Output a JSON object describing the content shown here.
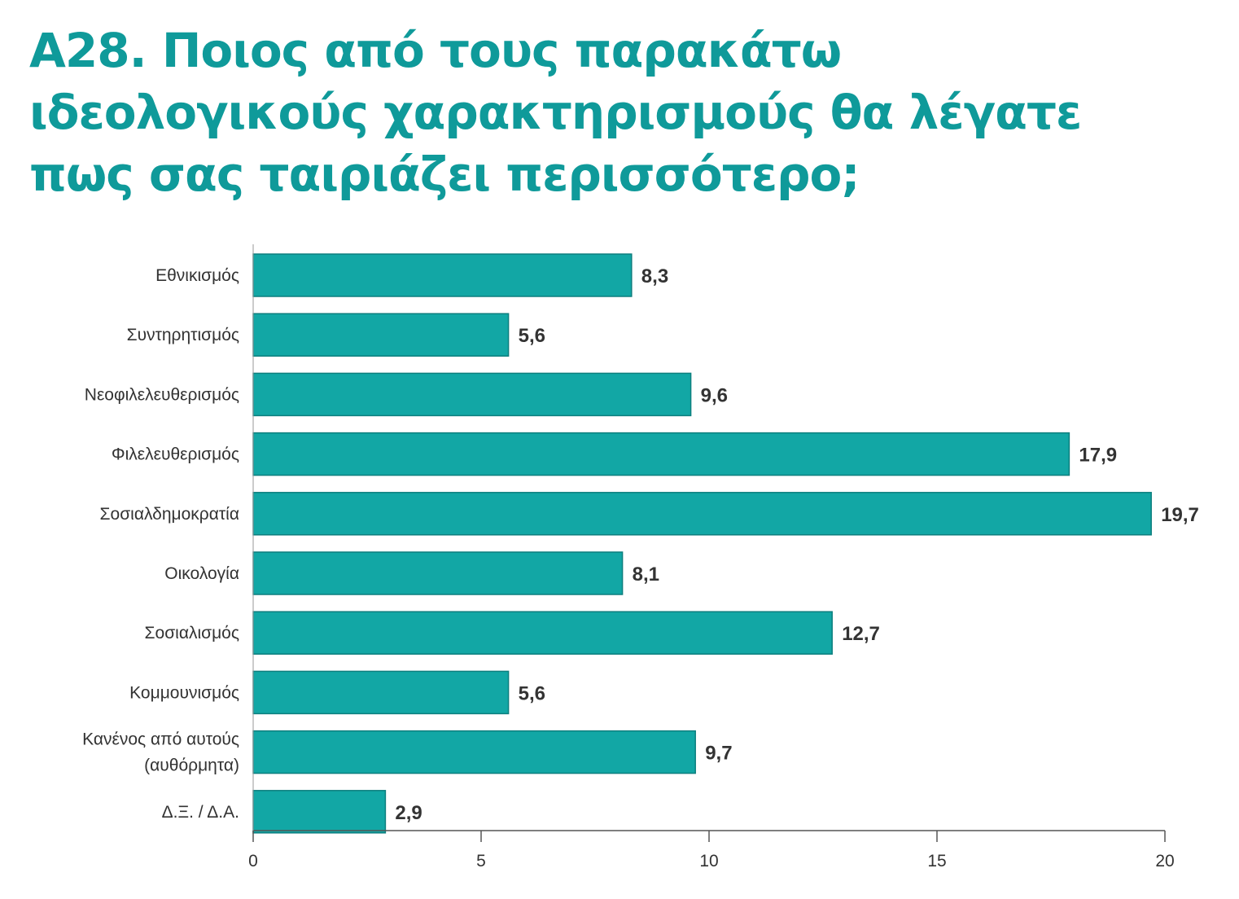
{
  "title_lines": [
    "A28. Ποιος από τους παρακάτω",
    "ιδεολογικούς χαρακτηρισμούς θα λέγατε",
    "πως σας ταιριάζει περισσότερο;"
  ],
  "colors": {
    "title": "#0f9a9a",
    "bar": "#12a7a5",
    "bar_edge": "#0d7f7e",
    "axis": "#555555"
  },
  "chart_data": {
    "type": "bar",
    "orientation": "horizontal",
    "categories": [
      [
        "Εθνικισμός"
      ],
      [
        "Συντηρητισμός"
      ],
      [
        "Νεοφιλελευθερισμός"
      ],
      [
        "Φιλελευθερισμός"
      ],
      [
        "Σοσιαλδημοκρατία"
      ],
      [
        "Οικολογία"
      ],
      [
        "Σοσιαλισμός"
      ],
      [
        "Κομμουνισμός"
      ],
      [
        "Κανένος από αυτούς",
        "(αυθόρμητα)"
      ],
      [
        "Δ.Ξ. / Δ.Α."
      ]
    ],
    "values": [
      8.3,
      5.6,
      9.6,
      17.9,
      19.7,
      8.1,
      12.7,
      5.6,
      9.7,
      2.9
    ],
    "value_labels": [
      "8,3",
      "5,6",
      "9,6",
      "17,9",
      "19,7",
      "8,1",
      "12,7",
      "5,6",
      "9,7",
      "2,9"
    ],
    "xlim": [
      0,
      20
    ],
    "xticks": [
      0,
      5,
      10,
      15,
      20
    ],
    "grid": false
  }
}
